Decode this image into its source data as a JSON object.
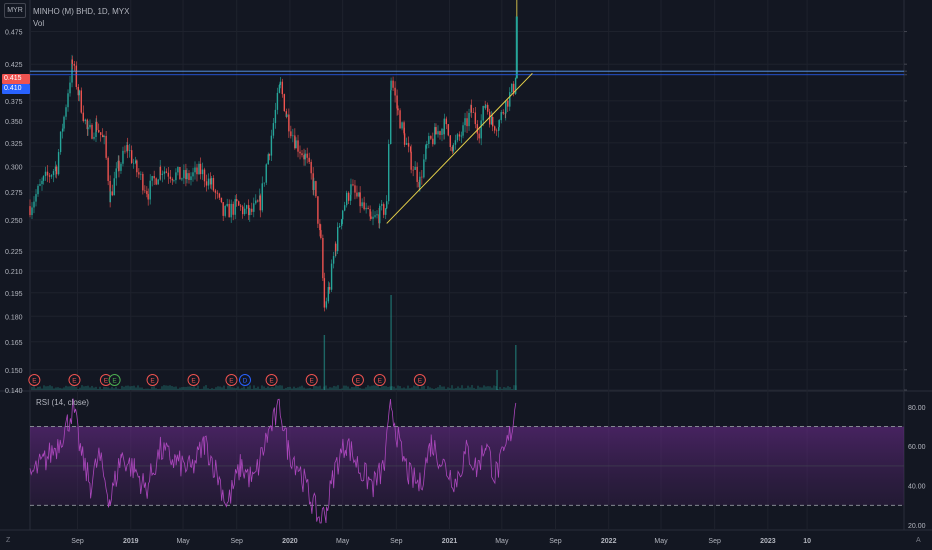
{
  "header": {
    "currency": "MYR",
    "symbol_title": "MINHO (M) BHD, 1D, MYX",
    "volume_label": "Vol",
    "rsi_label": "RSI (14, close)"
  },
  "price_badges": {
    "last_price": "0.415",
    "line_price": "0.410"
  },
  "corner_labels": {
    "left": "Z",
    "right": "A"
  },
  "events": [
    {
      "label": "E",
      "color": "#ef5350"
    },
    {
      "label": "E",
      "color": "#ef5350"
    },
    {
      "label": "E",
      "color": "#ef5350"
    },
    {
      "label": "E",
      "color": "#4caf50"
    },
    {
      "label": "E",
      "color": "#ef5350"
    },
    {
      "label": "E",
      "color": "#ef5350"
    },
    {
      "label": "E",
      "color": "#ef5350"
    },
    {
      "label": "D",
      "color": "#2962ff"
    },
    {
      "label": "E",
      "color": "#ef5350"
    },
    {
      "label": "E",
      "color": "#ef5350"
    },
    {
      "label": "E",
      "color": "#ef5350"
    },
    {
      "label": "E",
      "color": "#ef5350"
    },
    {
      "label": "E",
      "color": "#ef5350"
    }
  ],
  "chart_data": [
    {
      "type": "candlestick",
      "title": "MINHO (M) BHD, 1D, MYX",
      "y_scale": "log",
      "ylim": [
        0.14,
        0.52
      ],
      "y_ticks": [
        "0.475",
        "0.425",
        "0.415",
        "0.410",
        "0.375",
        "0.350",
        "0.325",
        "0.300",
        "0.275",
        "0.250",
        "0.225",
        "0.210",
        "0.195",
        "0.180",
        "0.165",
        "0.150",
        "0.140"
      ],
      "x_ticks": [
        "Sep",
        "2019",
        "May",
        "Sep",
        "2020",
        "May",
        "Sep",
        "2021",
        "May",
        "Sep",
        "2022",
        "May",
        "Sep",
        "2023",
        "10"
      ],
      "x_range": [
        "2018-05",
        "2023-10"
      ],
      "colors": {
        "up": "#26a69a",
        "down": "#ef5350"
      },
      "close_path": [
        [
          "2018-05-15",
          0.262
        ],
        [
          "2018-06-15",
          0.285
        ],
        [
          "2018-07-15",
          0.3
        ],
        [
          "2018-08-01",
          0.355
        ],
        [
          "2018-08-20",
          0.425
        ],
        [
          "2018-09-05",
          0.38
        ],
        [
          "2018-09-25",
          0.335
        ],
        [
          "2018-10-15",
          0.345
        ],
        [
          "2018-11-01",
          0.325
        ],
        [
          "2018-11-15",
          0.272
        ],
        [
          "2018-12-05",
          0.3
        ],
        [
          "2018-12-25",
          0.32
        ],
        [
          "2019-01-15",
          0.295
        ],
        [
          "2019-02-10",
          0.275
        ],
        [
          "2019-03-10",
          0.298
        ],
        [
          "2019-04-10",
          0.292
        ],
        [
          "2019-05-10",
          0.288
        ],
        [
          "2019-06-10",
          0.295
        ],
        [
          "2019-07-05",
          0.282
        ],
        [
          "2019-08-01",
          0.255
        ],
        [
          "2019-09-01",
          0.262
        ],
        [
          "2019-10-01",
          0.255
        ],
        [
          "2019-10-25",
          0.265
        ],
        [
          "2019-11-15",
          0.32
        ],
        [
          "2019-12-10",
          0.395
        ],
        [
          "2019-12-25",
          0.355
        ],
        [
          "2020-01-15",
          0.325
        ],
        [
          "2020-02-05",
          0.31
        ],
        [
          "2020-02-25",
          0.28
        ],
        [
          "2020-03-12",
          0.23
        ],
        [
          "2020-03-20",
          0.185
        ],
        [
          "2020-04-01",
          0.2
        ],
        [
          "2020-04-15",
          0.23
        ],
        [
          "2020-05-01",
          0.26
        ],
        [
          "2020-05-20",
          0.278
        ],
        [
          "2020-06-10",
          0.265
        ],
        [
          "2020-07-05",
          0.248
        ],
        [
          "2020-07-25",
          0.255
        ],
        [
          "2020-08-10",
          0.262
        ],
        [
          "2020-08-20",
          0.405
        ],
        [
          "2020-09-05",
          0.36
        ],
        [
          "2020-09-20",
          0.33
        ],
        [
          "2020-10-05",
          0.305
        ],
        [
          "2020-10-25",
          0.285
        ],
        [
          "2020-11-10",
          0.32
        ],
        [
          "2020-12-01",
          0.335
        ],
        [
          "2020-12-20",
          0.345
        ],
        [
          "2021-01-10",
          0.32
        ],
        [
          "2021-02-01",
          0.338
        ],
        [
          "2021-02-20",
          0.362
        ],
        [
          "2021-03-10",
          0.34
        ],
        [
          "2021-03-25",
          0.372
        ],
        [
          "2021-04-10",
          0.345
        ],
        [
          "2021-04-25",
          0.35
        ],
        [
          "2021-05-10",
          0.372
        ],
        [
          "2021-05-28",
          0.392
        ],
        [
          "2021-06-02",
          0.415
        ]
      ],
      "horizontal_levels": [
        0.415,
        0.41
      ],
      "trendline": {
        "from": [
          "2020-08-10",
          0.247
        ],
        "to": [
          "2021-07-10",
          0.412
        ]
      },
      "current_price": 0.415
    },
    {
      "type": "bar",
      "title": "Vol",
      "note": "volume histogram at bottom of price pane; relative heights only",
      "spikes": [
        [
          "2020-03-20",
          0.55
        ],
        [
          "2020-08-20",
          0.95
        ],
        [
          "2021-04-20",
          0.2
        ],
        [
          "2021-06-02",
          0.45
        ]
      ]
    },
    {
      "type": "line",
      "title": "RSI (14, close)",
      "ylim": [
        20,
        85
      ],
      "y_ticks": [
        "80.00",
        "60.00",
        "40.00",
        "20.00"
      ],
      "bands": {
        "upper": 70,
        "lower": 30
      },
      "series": [
        {
          "color": "#ab47bc"
        }
      ],
      "path": [
        [
          "2018-05-15",
          45
        ],
        [
          "2018-06-15",
          52
        ],
        [
          "2018-07-15",
          60
        ],
        [
          "2018-08-10",
          72
        ],
        [
          "2018-08-22",
          80
        ],
        [
          "2018-09-10",
          55
        ],
        [
          "2018-10-01",
          40
        ],
        [
          "2018-10-20",
          55
        ],
        [
          "2018-11-15",
          32
        ],
        [
          "2018-12-10",
          55
        ],
        [
          "2019-01-10",
          48
        ],
        [
          "2019-02-05",
          38
        ],
        [
          "2019-03-10",
          58
        ],
        [
          "2019-04-15",
          52
        ],
        [
          "2019-05-20",
          48
        ],
        [
          "2019-06-20",
          62
        ],
        [
          "2019-07-20",
          45
        ],
        [
          "2019-08-10",
          30
        ],
        [
          "2019-09-10",
          50
        ],
        [
          "2019-10-10",
          42
        ],
        [
          "2019-11-10",
          65
        ],
        [
          "2019-12-10",
          80
        ],
        [
          "2019-12-28",
          58
        ],
        [
          "2020-01-20",
          50
        ],
        [
          "2020-02-15",
          35
        ],
        [
          "2020-03-10",
          22
        ],
        [
          "2020-03-25",
          28
        ],
        [
          "2020-04-15",
          50
        ],
        [
          "2020-05-10",
          62
        ],
        [
          "2020-06-10",
          48
        ],
        [
          "2020-07-10",
          40
        ],
        [
          "2020-08-05",
          50
        ],
        [
          "2020-08-20",
          82
        ],
        [
          "2020-09-10",
          58
        ],
        [
          "2020-10-01",
          45
        ],
        [
          "2020-10-25",
          40
        ],
        [
          "2020-11-20",
          62
        ],
        [
          "2020-12-20",
          50
        ],
        [
          "2021-01-15",
          42
        ],
        [
          "2021-02-10",
          58
        ],
        [
          "2021-03-05",
          48
        ],
        [
          "2021-03-25",
          62
        ],
        [
          "2021-04-15",
          45
        ],
        [
          "2021-05-05",
          55
        ],
        [
          "2021-05-25",
          70
        ],
        [
          "2021-06-02",
          82
        ]
      ]
    }
  ]
}
